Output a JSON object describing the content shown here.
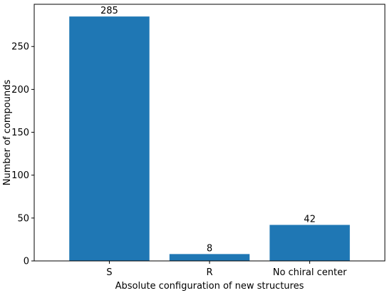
{
  "chart_data": {
    "type": "bar",
    "categories": [
      "S",
      "R",
      "No chiral center"
    ],
    "values": [
      285,
      8,
      42
    ],
    "data_labels": [
      "285",
      "8",
      "42"
    ],
    "xlabel": "Absolute configuration of new structures",
    "ylabel": "Number of compounds",
    "ylim": [
      0,
      299.25
    ],
    "yticks": [
      0,
      50,
      100,
      150,
      200,
      250
    ],
    "grid": false,
    "legend": "none",
    "bar_color": "#1f77b4"
  }
}
